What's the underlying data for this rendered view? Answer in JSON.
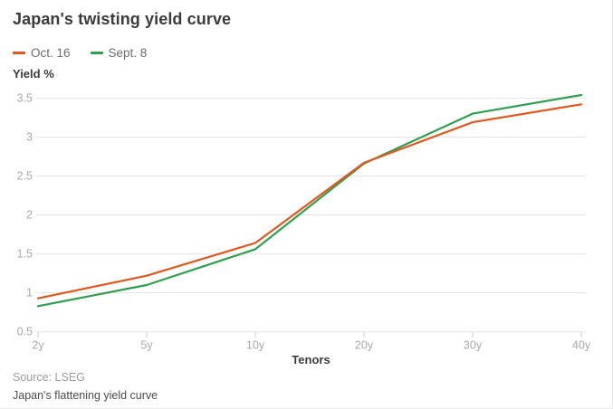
{
  "header": {
    "title": "Japan's twisting yield curve"
  },
  "axes": {
    "y_label": "Yield %",
    "x_label": "Tenors"
  },
  "footer": {
    "source": "Source: LSEG",
    "caption": "Japan's flattening yield curve"
  },
  "colors": {
    "oct16_orange": "#e2571e",
    "sept8_green": "#2f9e4f",
    "grid": "#e3e3e3",
    "tick_text": "#a8a8a8",
    "title_text": "#3b3b3b"
  },
  "chart_data": {
    "type": "line",
    "title": "Japan's twisting yield curve",
    "xlabel": "Tenors",
    "ylabel": "Yield %",
    "categories": [
      "2y",
      "5y",
      "10y",
      "20y",
      "30y",
      "40y"
    ],
    "series": [
      {
        "name": "Oct. 16",
        "color": "#e2571e",
        "values": [
          0.93,
          1.22,
          1.64,
          2.67,
          3.19,
          3.42
        ]
      },
      {
        "name": "Sept. 8",
        "color": "#2f9e4f",
        "values": [
          0.83,
          1.1,
          1.56,
          2.66,
          3.3,
          3.54
        ]
      }
    ],
    "ylim": [
      0.5,
      3.5
    ],
    "yticks": [
      0.5,
      1,
      1.5,
      2,
      2.5,
      3,
      3.5
    ],
    "grid": true,
    "legend_position": "top-left"
  }
}
